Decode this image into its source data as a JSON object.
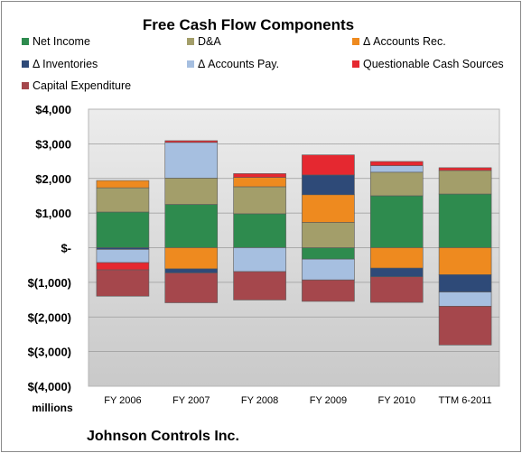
{
  "chart_data": {
    "type": "bar",
    "stacked": true,
    "title": "Free Cash Flow Components",
    "unit_label": "millions",
    "footer": "Johnson Controls Inc.",
    "categories": [
      "FY 2006",
      "FY 2007",
      "FY 2008",
      "FY 2009",
      "FY 2010",
      "TTM 6-2011"
    ],
    "ylim": [
      -4000,
      4000
    ],
    "yticks": [
      4000,
      3000,
      2000,
      1000,
      0,
      -1000,
      -2000,
      -3000,
      -4000
    ],
    "ytick_labels": [
      "$4,000",
      "$3,000",
      "$2,000",
      "$1,000",
      "$-",
      "$(1,000)",
      "$(2,000)",
      "$(3,000)",
      "$(4,000)"
    ],
    "legend_position": "top",
    "series": [
      {
        "name": "Net Income",
        "color": "#2e8b4e",
        "values": [
          1030,
          1250,
          980,
          -330,
          1500,
          1550
        ]
      },
      {
        "name": "D&A",
        "color": "#a39e6a",
        "values": [
          700,
          760,
          780,
          730,
          680,
          680
        ]
      },
      {
        "name": "Δ Accounts Rec.",
        "color": "#ee8a1f",
        "values": [
          210,
          -610,
          270,
          800,
          -590,
          -780
        ]
      },
      {
        "name": "Δ Inventories",
        "color": "#2e4a78",
        "values": [
          -50,
          -120,
          0,
          570,
          -250,
          -500
        ]
      },
      {
        "name": "Δ Accounts Pay.",
        "color": "#a6bfe0",
        "values": [
          -380,
          1030,
          -690,
          -600,
          190,
          -410
        ]
      },
      {
        "name": "Questionable Cash Sources",
        "color": "#e52830",
        "values": [
          -210,
          50,
          110,
          580,
          120,
          80
        ]
      },
      {
        "name": "Capital Expenditure",
        "color": "#a5474c",
        "values": [
          -760,
          -860,
          -820,
          -620,
          -740,
          -1120
        ]
      }
    ]
  }
}
